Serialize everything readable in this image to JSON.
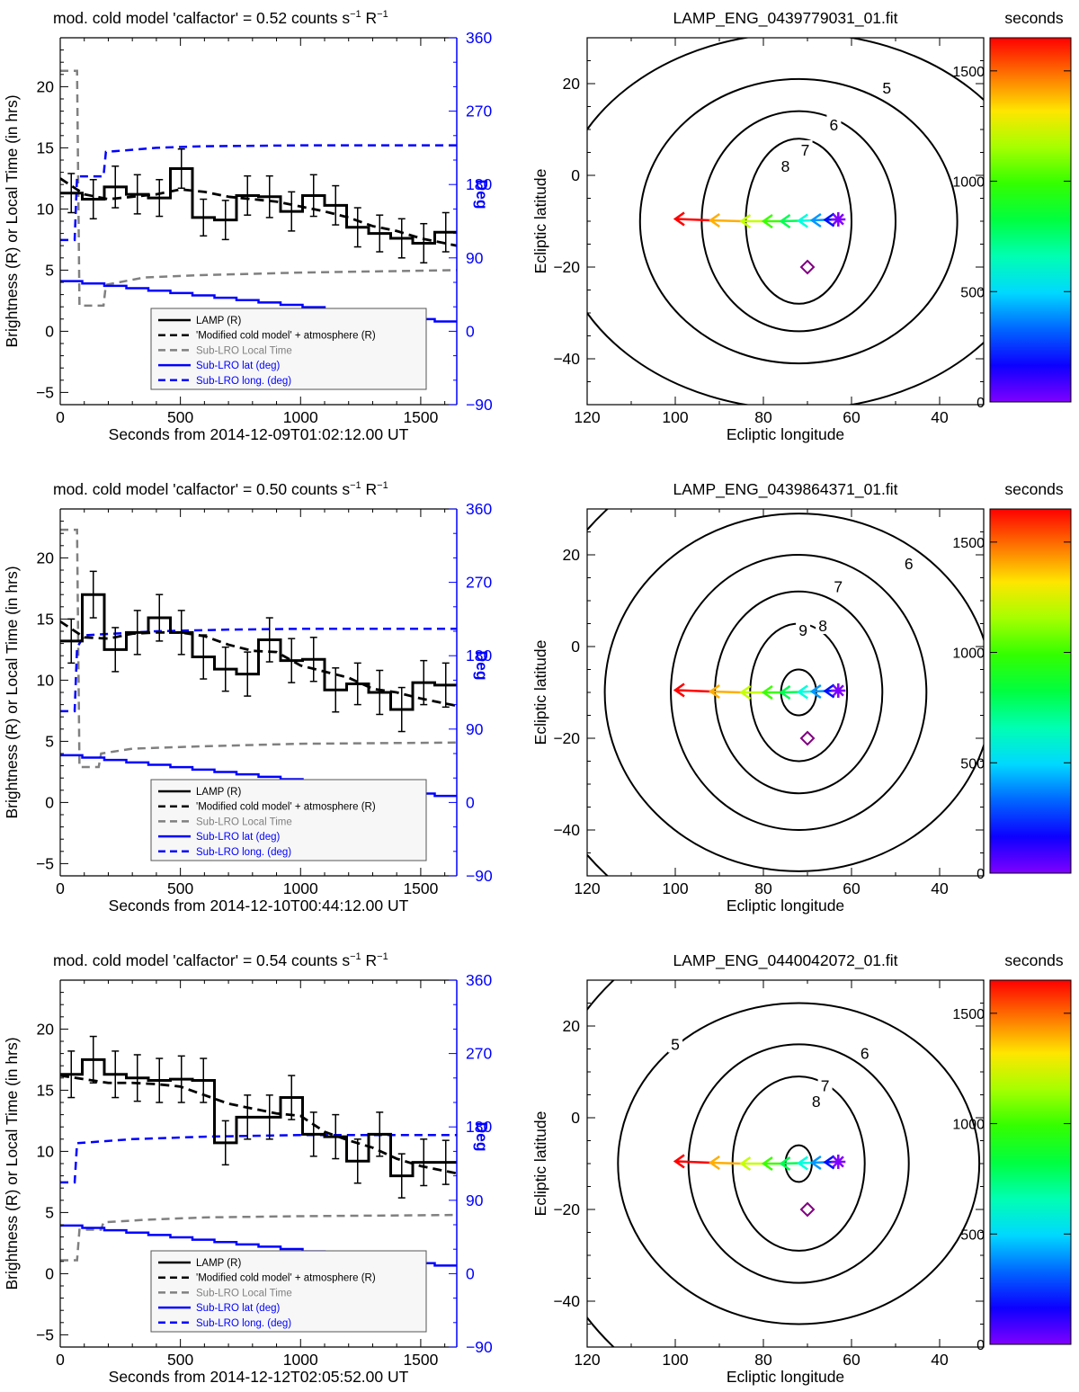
{
  "chart_data": [
    {
      "type": "line",
      "panel": "timeseries",
      "title_prefix": "mod. cold model 'calfactor' = 0.52 counts s",
      "title_exp1": "−1",
      "title_mid": " R",
      "title_exp2": "−1",
      "xlabel": "Seconds from 2014-12-09T01:02:12.00 UT",
      "ylabel": "Brightness (R) or Local Time (in hrs)",
      "y2label": "Deg",
      "xlim": [
        0,
        1650
      ],
      "ylim": [
        -6,
        24
      ],
      "y2lim": [
        -90,
        360
      ],
      "xticks": [
        "0",
        "500",
        "1000",
        "1500"
      ],
      "yticks": [
        "-5",
        "0",
        "5",
        "10",
        "15",
        "20"
      ],
      "y2ticks": [
        "-90",
        "0",
        "90",
        "180",
        "270",
        "360"
      ],
      "bin_edges": [
        0,
        91.7,
        183.3,
        275,
        366.7,
        458.3,
        550,
        641.7,
        733.3,
        825,
        916.7,
        1008.3,
        1100,
        1191.7,
        1283.3,
        1375,
        1466.7,
        1558.3,
        1650
      ],
      "series": [
        {
          "name": "LAMP (R)",
          "color": "#000000",
          "values": [
            11.3,
            10.8,
            11.8,
            11.2,
            10.9,
            13.3,
            9.3,
            9.1,
            11.1,
            11.0,
            9.8,
            11.1,
            10.3,
            8.5,
            8.0,
            7.6,
            7.2,
            8.1
          ],
          "errors": [
            1.6,
            1.6,
            1.7,
            1.6,
            1.5,
            1.6,
            1.5,
            1.6,
            1.6,
            1.7,
            1.6,
            1.7,
            1.6,
            1.6,
            1.5,
            1.6,
            1.6,
            1.6
          ]
        },
        {
          "name": "'Modified cold model' + atmosphere (R)",
          "color": "#000000",
          "x": [
            0,
            100,
            200,
            300,
            400,
            500,
            600,
            700,
            800,
            900,
            1000,
            1100,
            1200,
            1300,
            1400,
            1500,
            1650
          ],
          "values": [
            12.5,
            11.2,
            10.8,
            11.0,
            11.2,
            11.6,
            11.4,
            11.0,
            10.8,
            10.6,
            10.2,
            9.8,
            9.3,
            8.6,
            8.2,
            7.6,
            7.0
          ]
        },
        {
          "name": "Sub-LRO Local Time",
          "color": "#808080",
          "x": [
            0,
            40,
            70,
            80,
            180,
            190,
            350,
            600,
            1000,
            1650
          ],
          "values": [
            21.3,
            21.3,
            21.3,
            2.1,
            2.1,
            3.8,
            4.4,
            4.6,
            4.8,
            5.0
          ]
        },
        {
          "name": "Sub-LRO lat (deg)",
          "color": "#0000ff",
          "axis": "y2",
          "x": [
            0,
            1650
          ],
          "values": [
            61.5,
            12.0
          ]
        },
        {
          "name": "Sub-LRO long. (deg)",
          "color": "#0000ff",
          "axis": "y2",
          "x": [
            0,
            60,
            70,
            180,
            190,
            400,
            600,
            1000,
            1650
          ],
          "values": [
            112,
            112,
            190,
            190,
            220,
            225,
            227,
            228,
            228
          ]
        }
      ]
    },
    {
      "type": "contour",
      "panel": "map",
      "title": "LAMP_ENG_0439779031_01.fit",
      "xlabel": "Ecliptic longitude",
      "ylabel": "Ecliptic latitude",
      "xlim": [
        120,
        30
      ],
      "ylim": [
        -50,
        30
      ],
      "xticks": [
        "120",
        "100",
        "80",
        "60",
        "40"
      ],
      "yticks": [
        "20",
        "0",
        "-20",
        "-40"
      ],
      "center": [
        72,
        -10
      ],
      "contours": [
        {
          "label": "5",
          "rx": 55,
          "ry": 41,
          "label_at": [
            52,
            19
          ]
        },
        {
          "label": "6",
          "rx": 36,
          "ry": 31,
          "label_at": [
            64,
            11
          ]
        },
        {
          "label": "7",
          "rx": 22,
          "ry": 24,
          "label_at": [
            70.5,
            5.5
          ]
        },
        {
          "label": "8",
          "rx": 12,
          "ry": 18,
          "label_at": [
            75,
            2
          ]
        }
      ],
      "track": {
        "lon": [
          100,
          92,
          85,
          80,
          76,
          72,
          69,
          66,
          63
        ],
        "lat": [
          -9.5,
          -9.8,
          -10,
          -10,
          -10,
          -9.9,
          -9.8,
          -9.7,
          -9.6
        ],
        "t": [
          1650,
          1400,
          1200,
          1000,
          800,
          600,
          400,
          200,
          0
        ]
      },
      "diamond": [
        70,
        -20
      ],
      "colorbar": {
        "label": "seconds",
        "ticks": [
          "0",
          "500",
          "1000",
          "1500"
        ],
        "max": 1650
      }
    },
    {
      "type": "line",
      "panel": "timeseries",
      "title_prefix": "mod. cold model 'calfactor' = 0.50 counts s",
      "title_exp1": "−1",
      "title_mid": " R",
      "title_exp2": "−1",
      "xlabel": "Seconds from 2014-12-10T00:44:12.00 UT",
      "ylabel": "Brightness (R) or Local Time (in hrs)",
      "y2label": "Deg",
      "xlim": [
        0,
        1650
      ],
      "ylim": [
        -6,
        24
      ],
      "y2lim": [
        -90,
        360
      ],
      "xticks": [
        "0",
        "500",
        "1000",
        "1500"
      ],
      "yticks": [
        "-5",
        "0",
        "5",
        "10",
        "15",
        "20"
      ],
      "y2ticks": [
        "-90",
        "0",
        "90",
        "180",
        "270",
        "360"
      ],
      "bin_edges": [
        0,
        91.7,
        183.3,
        275,
        366.7,
        458.3,
        550,
        641.7,
        733.3,
        825,
        916.7,
        1008.3,
        1100,
        1191.7,
        1283.3,
        1375,
        1466.7,
        1558.3,
        1650
      ],
      "series": [
        {
          "name": "LAMP (R)",
          "color": "#000000",
          "values": [
            13.2,
            17.0,
            12.5,
            13.9,
            15.1,
            13.9,
            11.9,
            10.9,
            10.5,
            13.3,
            11.6,
            11.7,
            9.2,
            9.7,
            9.0,
            7.6,
            9.8,
            9.6
          ],
          "errors": [
            1.8,
            1.9,
            1.8,
            1.8,
            1.9,
            1.8,
            1.8,
            1.8,
            1.8,
            1.8,
            1.8,
            1.8,
            1.8,
            1.7,
            1.8,
            1.8,
            1.8,
            1.8
          ]
        },
        {
          "name": "'Modified cold model' + atmosphere (R)",
          "color": "#000000",
          "x": [
            0,
            100,
            200,
            300,
            400,
            500,
            600,
            700,
            800,
            900,
            1000,
            1100,
            1200,
            1300,
            1400,
            1500,
            1650
          ],
          "values": [
            14.8,
            13.5,
            13.4,
            13.8,
            13.9,
            13.9,
            13.6,
            12.9,
            12.4,
            12.3,
            11.2,
            10.7,
            10.2,
            9.3,
            9.0,
            8.5,
            7.9
          ]
        },
        {
          "name": "Sub-LRO Local Time",
          "color": "#808080",
          "x": [
            0,
            60,
            70,
            80,
            160,
            170,
            300,
            600,
            1000,
            1650
          ],
          "values": [
            22.3,
            22.3,
            22.3,
            2.9,
            2.9,
            4.0,
            4.4,
            4.6,
            4.8,
            4.9
          ]
        },
        {
          "name": "Sub-LRO lat (deg)",
          "color": "#0000ff",
          "axis": "y2",
          "x": [
            0,
            1650
          ],
          "values": [
            58.0,
            8.0
          ]
        },
        {
          "name": "Sub-LRO long. (deg)",
          "color": "#0000ff",
          "axis": "y2",
          "x": [
            0,
            60,
            70,
            100,
            400,
            700,
            1000,
            1650
          ],
          "values": [
            112,
            112,
            190,
            205,
            210,
            212,
            213,
            213
          ]
        }
      ]
    },
    {
      "type": "contour",
      "panel": "map",
      "title": "LAMP_ENG_0439864371_01.fit",
      "xlabel": "Ecliptic longitude",
      "ylabel": "Ecliptic latitude",
      "xlim": [
        120,
        30
      ],
      "ylim": [
        -50,
        30
      ],
      "xticks": [
        "120",
        "100",
        "80",
        "60",
        "40"
      ],
      "yticks": [
        "20",
        "0",
        "-20",
        "-40"
      ],
      "center": [
        72,
        -10
      ],
      "contours": [
        {
          "label": "",
          "rx": 62,
          "ry": 56,
          "label_at": [
            0,
            0
          ]
        },
        {
          "label": "6",
          "rx": 44,
          "ry": 39,
          "label_at": [
            47,
            18
          ]
        },
        {
          "label": "7",
          "rx": 29,
          "ry": 30,
          "label_at": [
            63,
            13
          ]
        },
        {
          "label": "8",
          "rx": 19,
          "ry": 22,
          "label_at": [
            66.5,
            4.5
          ]
        },
        {
          "label": "9",
          "rx": 11,
          "ry": 15,
          "label_at": [
            71,
            3.5
          ]
        },
        {
          "label": "",
          "rx": 4,
          "ry": 5,
          "label_at": [
            0,
            0
          ]
        }
      ],
      "track": {
        "lon": [
          100,
          92,
          85,
          80,
          76,
          72,
          69,
          66,
          63
        ],
        "lat": [
          -9.5,
          -9.8,
          -10,
          -10,
          -10,
          -9.9,
          -9.8,
          -9.7,
          -9.6
        ],
        "t": [
          1650,
          1400,
          1200,
          1000,
          800,
          600,
          400,
          200,
          0
        ]
      },
      "diamond": [
        70,
        -20
      ],
      "colorbar": {
        "label": "seconds",
        "ticks": [
          "0",
          "500",
          "1000",
          "1500"
        ],
        "max": 1650
      }
    },
    {
      "type": "line",
      "panel": "timeseries",
      "title_prefix": "mod. cold model 'calfactor' = 0.54 counts s",
      "title_exp1": "−1",
      "title_mid": " R",
      "title_exp2": "−1",
      "xlabel": "Seconds from 2014-12-12T02:05:52.00 UT",
      "ylabel": "Brightness (R) or Local Time (in hrs)",
      "y2label": "Deg",
      "xlim": [
        0,
        1650
      ],
      "ylim": [
        -6,
        24
      ],
      "y2lim": [
        -90,
        360
      ],
      "xticks": [
        "0",
        "500",
        "1000",
        "1500"
      ],
      "yticks": [
        "-5",
        "0",
        "5",
        "10",
        "15",
        "20"
      ],
      "y2ticks": [
        "-90",
        "0",
        "90",
        "180",
        "270",
        "360"
      ],
      "bin_edges": [
        0,
        91.7,
        183.3,
        275,
        366.7,
        458.3,
        550,
        641.7,
        733.3,
        825,
        916.7,
        1008.3,
        1100,
        1191.7,
        1283.3,
        1375,
        1466.7,
        1558.3,
        1650
      ],
      "series": [
        {
          "name": "LAMP (R)",
          "color": "#000000",
          "values": [
            16.3,
            17.5,
            16.3,
            16.0,
            15.8,
            15.9,
            15.8,
            10.7,
            12.8,
            12.8,
            14.4,
            11.4,
            11.2,
            9.2,
            11.4,
            8.0,
            9.1,
            9.1
          ],
          "errors": [
            1.9,
            1.9,
            1.9,
            1.9,
            1.8,
            1.9,
            1.8,
            1.8,
            1.8,
            1.8,
            1.8,
            1.8,
            1.8,
            1.8,
            1.8,
            1.8,
            1.9,
            1.8
          ]
        },
        {
          "name": "'Modified cold model' + atmosphere (R)",
          "color": "#000000",
          "x": [
            0,
            100,
            200,
            300,
            400,
            500,
            600,
            700,
            800,
            900,
            1000,
            1100,
            1200,
            1300,
            1400,
            1500,
            1650
          ],
          "values": [
            16.2,
            15.9,
            15.6,
            15.6,
            15.5,
            15.3,
            14.6,
            13.9,
            13.5,
            13.1,
            12.9,
            11.6,
            10.9,
            10.3,
            9.4,
            8.8,
            8.2
          ]
        },
        {
          "name": "Sub-LRO Local Time",
          "color": "#808080",
          "x": [
            0,
            60,
            70,
            80,
            170,
            180,
            350,
            600,
            1000,
            1650
          ],
          "values": [
            1.1,
            1.1,
            1.1,
            3.6,
            3.6,
            4.2,
            4.4,
            4.6,
            4.7,
            4.8
          ]
        },
        {
          "name": "Sub-LRO lat (deg)",
          "color": "#0000ff",
          "axis": "y2",
          "x": [
            0,
            1650
          ],
          "values": [
            59.0,
            10.0
          ]
        },
        {
          "name": "Sub-LRO long. (deg)",
          "color": "#0000ff",
          "axis": "y2",
          "x": [
            0,
            60,
            70,
            300,
            600,
            1000,
            1650
          ],
          "values": [
            112,
            112,
            160,
            165,
            168,
            170,
            170
          ]
        }
      ]
    },
    {
      "type": "contour",
      "panel": "map",
      "title": "LAMP_ENG_0440042072_01.fit",
      "xlabel": "Ecliptic longitude",
      "ylabel": "Ecliptic latitude",
      "xlim": [
        120,
        30
      ],
      "ylim": [
        -50,
        30
      ],
      "xticks": [
        "120",
        "100",
        "80",
        "60",
        "40"
      ],
      "yticks": [
        "20",
        "0",
        "-20",
        "-40"
      ],
      "center": [
        72,
        -10
      ],
      "contours": [
        {
          "label": "5",
          "rx": 60,
          "ry": 56,
          "label_at": [
            100,
            16
          ]
        },
        {
          "label": "6",
          "rx": 41,
          "ry": 35,
          "label_at": [
            57,
            14
          ]
        },
        {
          "label": "7",
          "rx": 25,
          "ry": 26,
          "label_at": [
            66,
            7
          ]
        },
        {
          "label": "8",
          "rx": 15,
          "ry": 19,
          "label_at": [
            68,
            3.5
          ]
        },
        {
          "label": "",
          "rx": 3,
          "ry": 4,
          "label_at": [
            0,
            0
          ]
        }
      ],
      "track": {
        "lon": [
          100,
          92,
          85,
          80,
          76,
          72,
          69,
          66,
          63
        ],
        "lat": [
          -9.5,
          -9.8,
          -10,
          -10,
          -10,
          -9.9,
          -9.8,
          -9.7,
          -9.6
        ],
        "t": [
          1650,
          1400,
          1200,
          1000,
          800,
          600,
          400,
          200,
          0
        ]
      },
      "diamond": [
        70,
        -20
      ],
      "colorbar": {
        "label": "seconds",
        "ticks": [
          "0",
          "500",
          "1000",
          "1500"
        ],
        "max": 1650
      }
    }
  ]
}
